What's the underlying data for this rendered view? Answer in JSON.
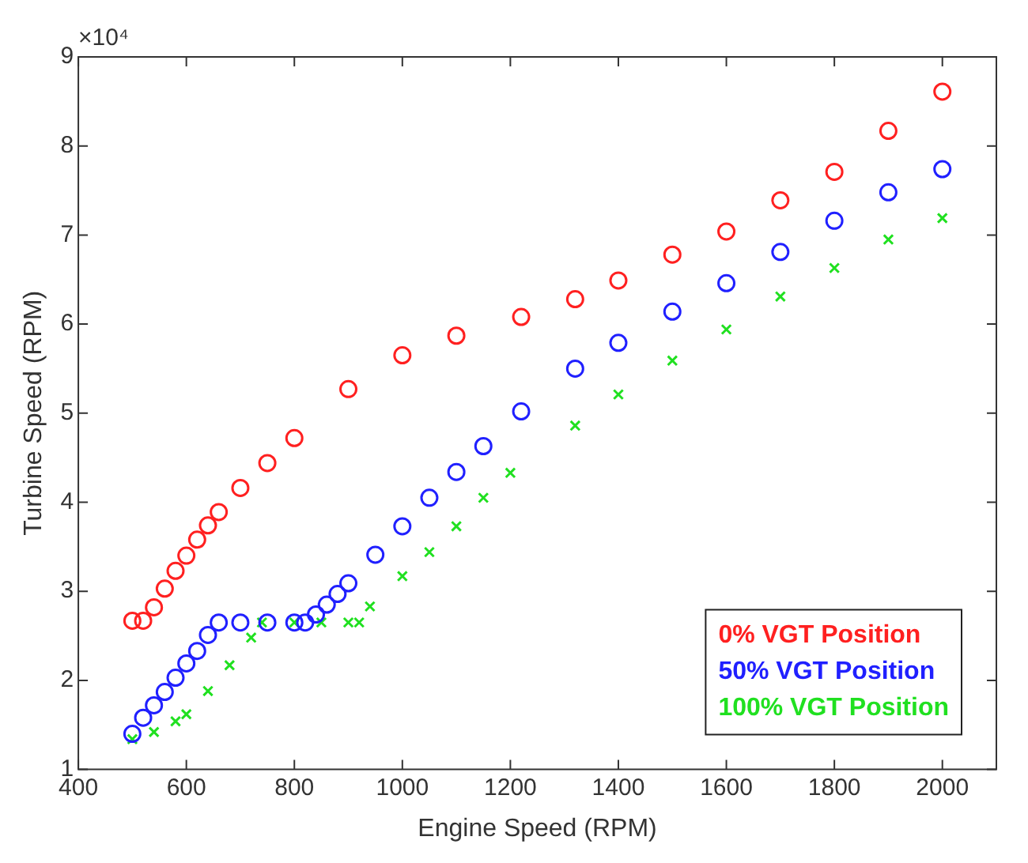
{
  "chart_data": {
    "type": "scatter",
    "xlabel": "Engine Speed (RPM)",
    "ylabel": "Turbine Speed (RPM)",
    "annotations": [
      "×10⁴"
    ],
    "xlim": [
      400,
      2100
    ],
    "xticks": [
      400,
      600,
      800,
      1000,
      1200,
      1400,
      1600,
      1800,
      2000
    ],
    "ylim": [
      1,
      9
    ],
    "yticks": [
      1,
      2,
      3,
      4,
      5,
      6,
      7,
      8,
      9
    ],
    "grid": false,
    "legend": "bottom right",
    "series": [
      {
        "name": "0% VGT Position",
        "color": "#ff2020",
        "marker": "circle",
        "x": [
          500,
          520,
          540,
          560,
          580,
          600,
          620,
          640,
          660,
          700,
          750,
          800,
          900,
          1000,
          1100,
          1220,
          1320,
          1400,
          1500,
          1600,
          1700,
          1800,
          1900,
          2000
        ],
        "values": [
          2.67,
          2.67,
          2.82,
          3.03,
          3.23,
          3.4,
          3.58,
          3.74,
          3.89,
          4.16,
          4.44,
          4.72,
          5.27,
          5.65,
          5.87,
          6.08,
          6.28,
          6.49,
          6.78,
          7.04,
          7.39,
          7.71,
          8.17,
          8.61
        ]
      },
      {
        "name": "50% VGT Position",
        "color": "#2020ff",
        "marker": "circle",
        "x": [
          500,
          520,
          540,
          560,
          580,
          600,
          620,
          640,
          660,
          700,
          750,
          800,
          820,
          840,
          860,
          880,
          900,
          950,
          1000,
          1050,
          1100,
          1150,
          1220,
          1320,
          1400,
          1500,
          1600,
          1700,
          1800,
          1900,
          2000
        ],
        "values": [
          1.4,
          1.58,
          1.72,
          1.87,
          2.03,
          2.19,
          2.33,
          2.51,
          2.65,
          2.65,
          2.65,
          2.65,
          2.65,
          2.74,
          2.85,
          2.97,
          3.09,
          3.41,
          3.73,
          4.05,
          4.34,
          4.63,
          5.02,
          5.5,
          5.79,
          6.14,
          6.46,
          6.81,
          7.16,
          7.48,
          7.74
        ]
      },
      {
        "name": "100% VGT Position",
        "color": "#20e020",
        "marker": "cross",
        "x": [
          500,
          540,
          580,
          600,
          640,
          680,
          720,
          740,
          800,
          850,
          900,
          920,
          940,
          1000,
          1050,
          1100,
          1150,
          1200,
          1320,
          1400,
          1500,
          1600,
          1700,
          1800,
          1900,
          2000
        ],
        "values": [
          1.34,
          1.42,
          1.54,
          1.62,
          1.88,
          2.17,
          2.48,
          2.65,
          2.65,
          2.65,
          2.65,
          2.65,
          2.83,
          3.17,
          3.44,
          3.73,
          4.05,
          4.33,
          4.86,
          5.21,
          5.59,
          5.94,
          6.31,
          6.63,
          6.95,
          7.19
        ]
      }
    ]
  }
}
